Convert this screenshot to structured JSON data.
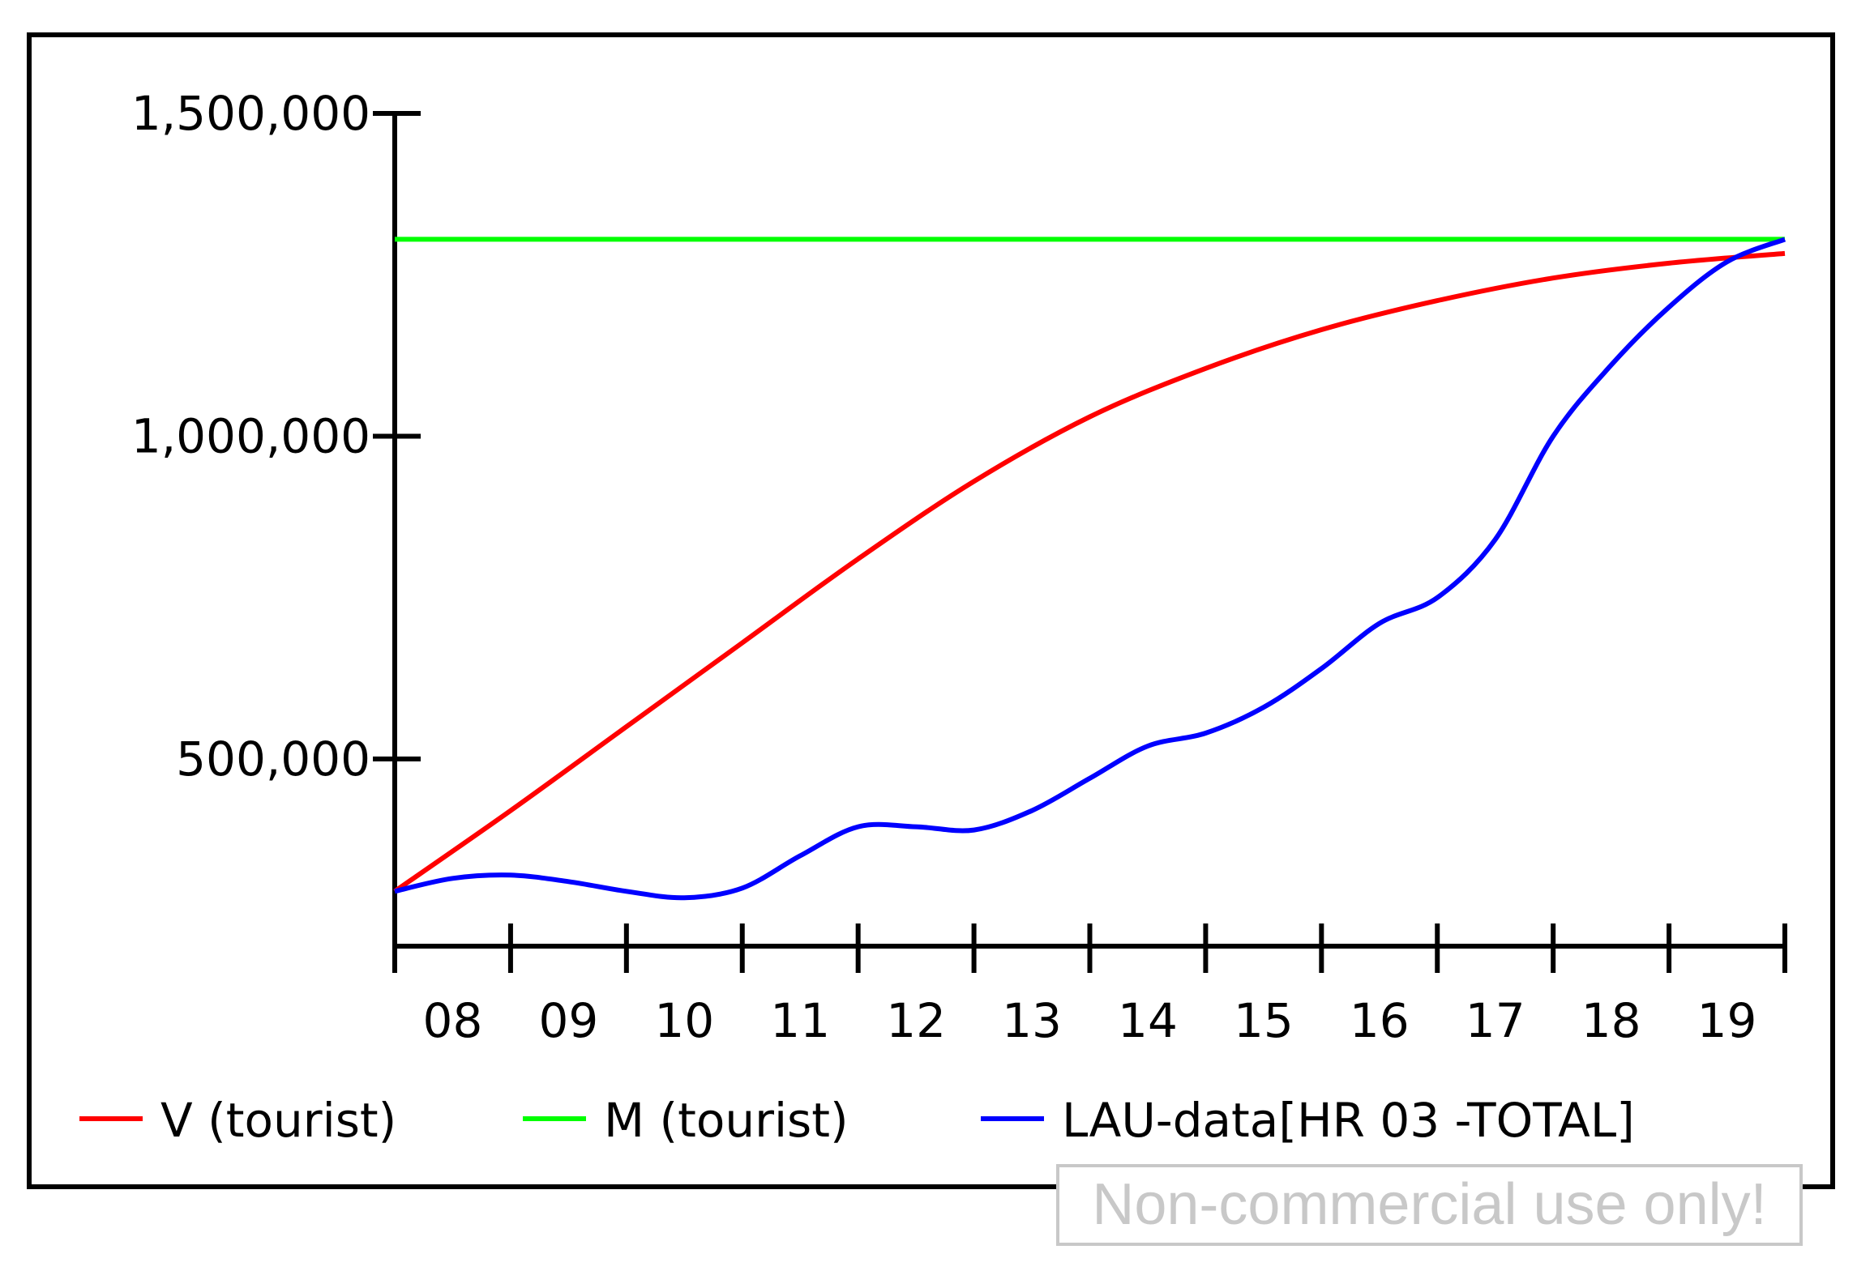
{
  "chart_data": {
    "type": "line",
    "title": "",
    "xlabel": "",
    "ylabel": "",
    "x_ticks": [
      "08",
      "09",
      "10",
      "11",
      "12",
      "13",
      "14",
      "15",
      "16",
      "17",
      "18",
      "19"
    ],
    "y_ticks": [
      {
        "value": 500000,
        "label": "500,000"
      },
      {
        "value": 1000000,
        "label": "1,000,000"
      },
      {
        "value": 1500000,
        "label": "1,500,000"
      }
    ],
    "xlim": [
      2007.5,
      2019.5
    ],
    "ylim": [
      210000,
      1500000
    ],
    "grid": false,
    "legend_position": "bottom",
    "series": [
      {
        "name": "V (tourist)",
        "color": "#ff0000",
        "x": [
          2007.5,
          2008.5,
          2009.5,
          2010.5,
          2011.5,
          2012.5,
          2013.5,
          2014.5,
          2015.5,
          2016.5,
          2017.5,
          2018.5,
          2019.5
        ],
        "values": [
          295000,
          420000,
          550000,
          680000,
          810000,
          930000,
          1030000,
          1105000,
          1165000,
          1210000,
          1245000,
          1268000,
          1283000
        ]
      },
      {
        "name": "M (tourist)",
        "color": "#00ff00",
        "x": [
          2007.5,
          2019.5
        ],
        "values": [
          1305000,
          1305000
        ]
      },
      {
        "name": "LAU-data[HR 03 -TOTAL]",
        "color": "#0000ff",
        "x": [
          2007.5,
          2008.0,
          2008.5,
          2009.0,
          2009.5,
          2010.0,
          2010.5,
          2011.0,
          2011.5,
          2012.0,
          2012.5,
          2013.0,
          2013.5,
          2014.0,
          2014.5,
          2015.0,
          2015.5,
          2016.0,
          2016.5,
          2017.0,
          2017.5,
          2018.0,
          2018.5,
          2019.0,
          2019.5
        ],
        "values": [
          295000,
          315000,
          320000,
          310000,
          295000,
          285000,
          300000,
          350000,
          395000,
          395000,
          390000,
          420000,
          470000,
          520000,
          540000,
          580000,
          640000,
          710000,
          750000,
          840000,
          1000000,
          1110000,
          1200000,
          1270000,
          1305000
        ]
      }
    ]
  },
  "watermark": "Non-commercial use only!"
}
